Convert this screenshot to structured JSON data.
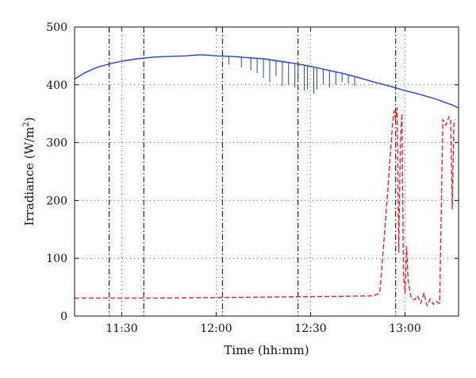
{
  "chart_data": {
    "type": "line",
    "xlabel": "Time (hh:mm)",
    "ylabel_main": "Irradiance (W/m",
    "ylabel_sup": "2",
    "ylabel_close": ")",
    "xlim_minutes": [
      675,
      797
    ],
    "ylim": [
      0,
      500
    ],
    "x_ticks": [
      {
        "minutes": 690,
        "label": "11:30"
      },
      {
        "minutes": 720,
        "label": "12:00"
      },
      {
        "minutes": 750,
        "label": "12:30"
      },
      {
        "minutes": 780,
        "label": "13:00"
      }
    ],
    "y_ticks": [
      0,
      100,
      200,
      300,
      400,
      500
    ],
    "grid": "dotted",
    "vertical_markers_minutes": [
      686,
      697,
      722,
      746,
      777
    ],
    "colors": {
      "series_blue": "#1f3fd6",
      "series_red": "#e8202a",
      "markers": "#222222",
      "grid": "#777777"
    },
    "series": [
      {
        "style": "solid",
        "color_key": "series_blue",
        "x": [
          675,
          678,
          682,
          686,
          690,
          695,
          700,
          705,
          710,
          715,
          718,
          720,
          725,
          730,
          735,
          740,
          745,
          750,
          755,
          760,
          765,
          770,
          775,
          780,
          785,
          790,
          795,
          797
        ],
        "y": [
          410,
          420,
          430,
          436,
          441,
          445,
          448,
          449,
          450,
          452,
          451,
          450,
          449,
          447,
          445,
          441,
          437,
          432,
          426,
          420,
          413,
          405,
          398,
          390,
          383,
          375,
          365,
          360
        ]
      },
      {
        "style": "dashed",
        "color_key": "series_red",
        "x": [
          675,
          700,
          720,
          740,
          760,
          770,
          772,
          774,
          776,
          776.5,
          777,
          777.5,
          778,
          778.5,
          779,
          779.5,
          780,
          780.5,
          781,
          782,
          783,
          784,
          785,
          786,
          787,
          788,
          789,
          790,
          791,
          792,
          793,
          794,
          794.5,
          795,
          795.5,
          796
        ],
        "y": [
          31,
          31,
          32,
          33,
          34,
          35,
          40,
          180,
          330,
          355,
          340,
          360,
          110,
          300,
          350,
          70,
          40,
          120,
          60,
          30,
          28,
          35,
          22,
          40,
          18,
          30,
          20,
          25,
          22,
          340,
          330,
          345,
          340,
          185,
          330,
          340
        ]
      }
    ],
    "spikes": [
      {
        "x": 724,
        "to": 435
      },
      {
        "x": 728,
        "to": 430
      },
      {
        "x": 731,
        "to": 425
      },
      {
        "x": 733,
        "to": 420
      },
      {
        "x": 735,
        "to": 412
      },
      {
        "x": 737,
        "to": 405
      },
      {
        "x": 739,
        "to": 415
      },
      {
        "x": 741,
        "to": 398
      },
      {
        "x": 743,
        "to": 400
      },
      {
        "x": 745,
        "to": 395
      },
      {
        "x": 746,
        "to": 405
      },
      {
        "x": 748,
        "to": 390
      },
      {
        "x": 749,
        "to": 392
      },
      {
        "x": 751,
        "to": 385
      },
      {
        "x": 752,
        "to": 392
      },
      {
        "x": 754,
        "to": 400
      },
      {
        "x": 756,
        "to": 395
      },
      {
        "x": 758,
        "to": 400
      },
      {
        "x": 760,
        "to": 405
      },
      {
        "x": 762,
        "to": 402
      },
      {
        "x": 764,
        "to": 398
      }
    ]
  }
}
